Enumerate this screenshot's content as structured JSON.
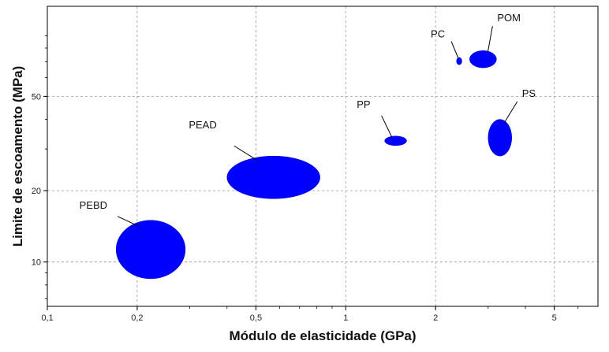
{
  "chart_data": {
    "type": "scatter",
    "title": "",
    "xlabel": "Módulo de elasticidade (GPa)",
    "ylabel": "Limite de escoamento (MPa)",
    "x_scale": "log",
    "y_scale": "log",
    "xlim": [
      0.1,
      7
    ],
    "ylim": [
      6.5,
      120
    ],
    "x_ticks": [
      {
        "value": 0.1,
        "label": "0,1"
      },
      {
        "value": 0.2,
        "label": "0,2"
      },
      {
        "value": 0.5,
        "label": "0,5"
      },
      {
        "value": 1,
        "label": "1"
      },
      {
        "value": 2,
        "label": "2"
      },
      {
        "value": 5,
        "label": "5"
      }
    ],
    "y_ticks": [
      {
        "value": 10,
        "label": "10"
      },
      {
        "value": 20,
        "label": "20"
      },
      {
        "value": 50,
        "label": "50"
      }
    ],
    "grid": true,
    "color": "#0000ff",
    "materials": [
      {
        "label": "PEBD",
        "x_range": [
          0.17,
          0.29
        ],
        "y_range": [
          8.5,
          15
        ]
      },
      {
        "label": "PEAD",
        "x_range": [
          0.4,
          0.82
        ],
        "y_range": [
          18.5,
          28
        ]
      },
      {
        "label": "PP",
        "x_range": [
          1.35,
          1.6
        ],
        "y_range": [
          31,
          34
        ]
      },
      {
        "label": "PC",
        "x_range": [
          2.35,
          2.45
        ],
        "y_range": [
          68,
          73
        ]
      },
      {
        "label": "POM",
        "x_range": [
          2.6,
          3.2
        ],
        "y_range": [
          66,
          78
        ]
      },
      {
        "label": "PS",
        "x_range": [
          3.0,
          3.6
        ],
        "y_range": [
          28,
          40
        ]
      }
    ]
  }
}
